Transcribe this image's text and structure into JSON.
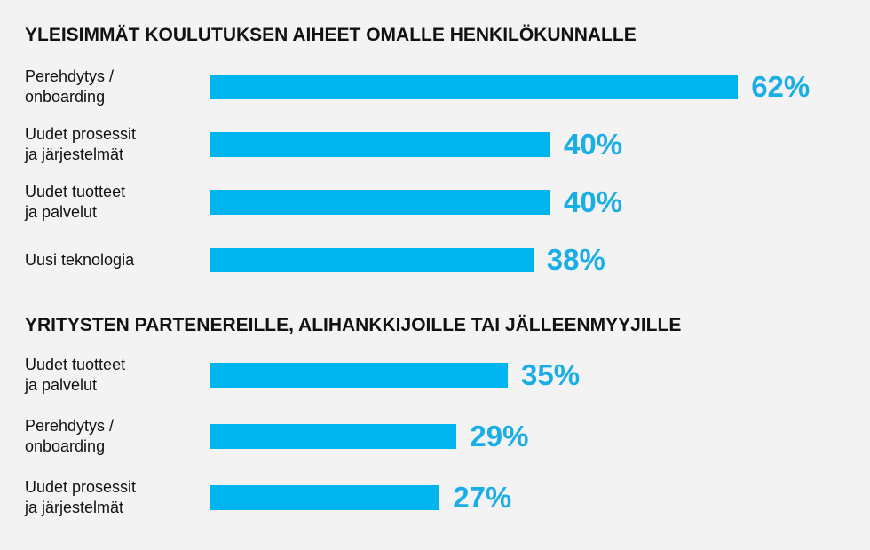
{
  "colors": {
    "bar": "#00b4f0",
    "value_text": "#1aaee6",
    "text": "#111111",
    "background": "#f3f3f3"
  },
  "chart_data": [
    {
      "type": "bar",
      "orientation": "horizontal",
      "title": "YLEISIMMÄT KOULUTUKSEN AIHEET OMALLE HENKILÖKUNNALLE",
      "categories": [
        "Perehdytys / onboarding",
        "Uudet prosessit ja järjestelmät",
        "Uudet tuotteet ja palvelut",
        "Uusi teknologia"
      ],
      "values": [
        62,
        40,
        40,
        38
      ],
      "value_labels": [
        "62%",
        "40%",
        "40%",
        "38%"
      ],
      "unit": "%",
      "xlim": [
        0,
        100
      ],
      "grid": false
    },
    {
      "type": "bar",
      "orientation": "horizontal",
      "title": "YRITYSTEN PARTENEREILLE, ALIHANKKIJOILLE TAI JÄLLEENMYYJILLE",
      "categories": [
        "Uudet tuotteet ja palvelut",
        "Perehdytys / onboarding",
        "Uudet prosessit ja järjestelmät"
      ],
      "values": [
        35,
        29,
        27
      ],
      "value_labels": [
        "35%",
        "29%",
        "27%"
      ],
      "unit": "%",
      "xlim": [
        0,
        100
      ],
      "grid": false
    }
  ]
}
